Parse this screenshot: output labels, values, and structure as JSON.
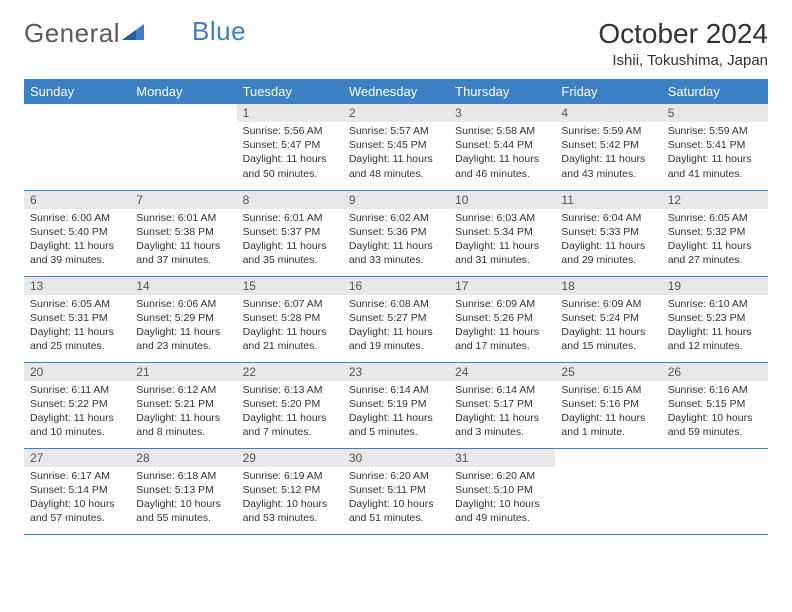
{
  "logo": {
    "text_a": "General",
    "text_b": "Blue"
  },
  "title": "October 2024",
  "location": "Ishii, Tokushima, Japan",
  "style": {
    "header_bg": "#3b7fc4",
    "header_text": "#ffffff",
    "daynum_bg": "#e8e8e8",
    "border_color": "#3b7fc4",
    "body_text": "#333333",
    "font_family": "Arial, Helvetica, sans-serif",
    "title_fontsize": 28,
    "location_fontsize": 15,
    "dayheader_fontsize": 13,
    "cell_fontsize": 10.5
  },
  "days_of_week": [
    "Sunday",
    "Monday",
    "Tuesday",
    "Wednesday",
    "Thursday",
    "Friday",
    "Saturday"
  ],
  "weeks": [
    [
      null,
      null,
      {
        "n": "1",
        "sr": "5:56 AM",
        "ss": "5:47 PM",
        "dl": "11 hours and 50 minutes."
      },
      {
        "n": "2",
        "sr": "5:57 AM",
        "ss": "5:45 PM",
        "dl": "11 hours and 48 minutes."
      },
      {
        "n": "3",
        "sr": "5:58 AM",
        "ss": "5:44 PM",
        "dl": "11 hours and 46 minutes."
      },
      {
        "n": "4",
        "sr": "5:59 AM",
        "ss": "5:42 PM",
        "dl": "11 hours and 43 minutes."
      },
      {
        "n": "5",
        "sr": "5:59 AM",
        "ss": "5:41 PM",
        "dl": "11 hours and 41 minutes."
      }
    ],
    [
      {
        "n": "6",
        "sr": "6:00 AM",
        "ss": "5:40 PM",
        "dl": "11 hours and 39 minutes."
      },
      {
        "n": "7",
        "sr": "6:01 AM",
        "ss": "5:38 PM",
        "dl": "11 hours and 37 minutes."
      },
      {
        "n": "8",
        "sr": "6:01 AM",
        "ss": "5:37 PM",
        "dl": "11 hours and 35 minutes."
      },
      {
        "n": "9",
        "sr": "6:02 AM",
        "ss": "5:36 PM",
        "dl": "11 hours and 33 minutes."
      },
      {
        "n": "10",
        "sr": "6:03 AM",
        "ss": "5:34 PM",
        "dl": "11 hours and 31 minutes."
      },
      {
        "n": "11",
        "sr": "6:04 AM",
        "ss": "5:33 PM",
        "dl": "11 hours and 29 minutes."
      },
      {
        "n": "12",
        "sr": "6:05 AM",
        "ss": "5:32 PM",
        "dl": "11 hours and 27 minutes."
      }
    ],
    [
      {
        "n": "13",
        "sr": "6:05 AM",
        "ss": "5:31 PM",
        "dl": "11 hours and 25 minutes."
      },
      {
        "n": "14",
        "sr": "6:06 AM",
        "ss": "5:29 PM",
        "dl": "11 hours and 23 minutes."
      },
      {
        "n": "15",
        "sr": "6:07 AM",
        "ss": "5:28 PM",
        "dl": "11 hours and 21 minutes."
      },
      {
        "n": "16",
        "sr": "6:08 AM",
        "ss": "5:27 PM",
        "dl": "11 hours and 19 minutes."
      },
      {
        "n": "17",
        "sr": "6:09 AM",
        "ss": "5:26 PM",
        "dl": "11 hours and 17 minutes."
      },
      {
        "n": "18",
        "sr": "6:09 AM",
        "ss": "5:24 PM",
        "dl": "11 hours and 15 minutes."
      },
      {
        "n": "19",
        "sr": "6:10 AM",
        "ss": "5:23 PM",
        "dl": "11 hours and 12 minutes."
      }
    ],
    [
      {
        "n": "20",
        "sr": "6:11 AM",
        "ss": "5:22 PM",
        "dl": "11 hours and 10 minutes."
      },
      {
        "n": "21",
        "sr": "6:12 AM",
        "ss": "5:21 PM",
        "dl": "11 hours and 8 minutes."
      },
      {
        "n": "22",
        "sr": "6:13 AM",
        "ss": "5:20 PM",
        "dl": "11 hours and 7 minutes."
      },
      {
        "n": "23",
        "sr": "6:14 AM",
        "ss": "5:19 PM",
        "dl": "11 hours and 5 minutes."
      },
      {
        "n": "24",
        "sr": "6:14 AM",
        "ss": "5:17 PM",
        "dl": "11 hours and 3 minutes."
      },
      {
        "n": "25",
        "sr": "6:15 AM",
        "ss": "5:16 PM",
        "dl": "11 hours and 1 minute."
      },
      {
        "n": "26",
        "sr": "6:16 AM",
        "ss": "5:15 PM",
        "dl": "10 hours and 59 minutes."
      }
    ],
    [
      {
        "n": "27",
        "sr": "6:17 AM",
        "ss": "5:14 PM",
        "dl": "10 hours and 57 minutes."
      },
      {
        "n": "28",
        "sr": "6:18 AM",
        "ss": "5:13 PM",
        "dl": "10 hours and 55 minutes."
      },
      {
        "n": "29",
        "sr": "6:19 AM",
        "ss": "5:12 PM",
        "dl": "10 hours and 53 minutes."
      },
      {
        "n": "30",
        "sr": "6:20 AM",
        "ss": "5:11 PM",
        "dl": "10 hours and 51 minutes."
      },
      {
        "n": "31",
        "sr": "6:20 AM",
        "ss": "5:10 PM",
        "dl": "10 hours and 49 minutes."
      },
      null,
      null
    ]
  ],
  "labels": {
    "sunrise": "Sunrise:",
    "sunset": "Sunset:",
    "daylight": "Daylight:"
  }
}
